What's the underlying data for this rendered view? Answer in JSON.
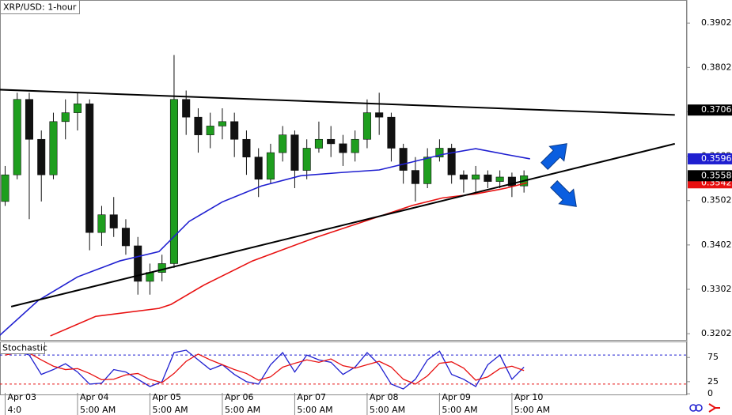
{
  "chart_data": [
    {
      "type": "candlestick",
      "title": "XRP/USD: 1-hour",
      "x": [
        0,
        4,
        8,
        12,
        16,
        20,
        24,
        28,
        32,
        36,
        40,
        44,
        48,
        52,
        56,
        60,
        64,
        68,
        72,
        76,
        80,
        84,
        88,
        92,
        96,
        100,
        104,
        108,
        112,
        116,
        120,
        124,
        128,
        132,
        136,
        140,
        144,
        148,
        152,
        156,
        160,
        164,
        168,
        172
      ],
      "open": [
        0.35,
        0.356,
        0.373,
        0.364,
        0.356,
        0.368,
        0.37,
        0.372,
        0.343,
        0.347,
        0.344,
        0.34,
        0.332,
        0.334,
        0.336,
        0.373,
        0.369,
        0.365,
        0.367,
        0.368,
        0.364,
        0.36,
        0.355,
        0.361,
        0.365,
        0.357,
        0.362,
        0.364,
        0.363,
        0.361,
        0.364,
        0.37,
        0.369,
        0.362,
        0.357,
        0.354,
        0.36,
        0.362,
        0.356,
        0.355,
        0.356,
        0.3545,
        0.3555,
        0.3535
      ],
      "high": [
        0.358,
        0.3745,
        0.3745,
        0.366,
        0.37,
        0.373,
        0.3745,
        0.373,
        0.349,
        0.351,
        0.346,
        0.342,
        0.336,
        0.338,
        0.383,
        0.375,
        0.371,
        0.37,
        0.371,
        0.37,
        0.366,
        0.362,
        0.363,
        0.367,
        0.366,
        0.364,
        0.368,
        0.367,
        0.365,
        0.366,
        0.373,
        0.3745,
        0.37,
        0.363,
        0.36,
        0.362,
        0.364,
        0.363,
        0.357,
        0.358,
        0.357,
        0.357,
        0.3565,
        0.357
      ],
      "low": [
        0.349,
        0.355,
        0.346,
        0.35,
        0.355,
        0.364,
        0.366,
        0.339,
        0.34,
        0.342,
        0.338,
        0.329,
        0.329,
        0.332,
        0.335,
        0.365,
        0.361,
        0.362,
        0.364,
        0.36,
        0.356,
        0.351,
        0.354,
        0.359,
        0.353,
        0.355,
        0.361,
        0.36,
        0.358,
        0.359,
        0.362,
        0.365,
        0.359,
        0.354,
        0.35,
        0.353,
        0.359,
        0.354,
        0.352,
        0.352,
        0.353,
        0.353,
        0.351,
        0.352
      ],
      "close": [
        0.356,
        0.373,
        0.364,
        0.356,
        0.368,
        0.37,
        0.372,
        0.343,
        0.347,
        0.344,
        0.34,
        0.332,
        0.334,
        0.336,
        0.373,
        0.369,
        0.365,
        0.367,
        0.368,
        0.364,
        0.36,
        0.355,
        0.361,
        0.365,
        0.357,
        0.362,
        0.364,
        0.363,
        0.361,
        0.364,
        0.37,
        0.369,
        0.362,
        0.357,
        0.354,
        0.36,
        0.362,
        0.356,
        0.355,
        0.356,
        0.3545,
        0.3555,
        0.3535,
        0.3558
      ],
      "up_color": "#1e9e1e",
      "down_color": "#111111",
      "lines": [
        {
          "color": "#1f1fd0",
          "x": [
            -2,
            11,
            24,
            38,
            51,
            61,
            72,
            85,
            98,
            111,
            124,
            135,
            145,
            156,
            166,
            174
          ],
          "values": [
            0.3197,
            0.3277,
            0.333,
            0.3366,
            0.3387,
            0.3455,
            0.3499,
            0.3535,
            0.3558,
            0.3565,
            0.3571,
            0.3589,
            0.3606,
            0.3619,
            0.3606,
            0.3596
          ]
        },
        {
          "color": "#e81010",
          "x": [
            15,
            30,
            51,
            55,
            66,
            82,
            103,
            119,
            135,
            145,
            156,
            166,
            173
          ],
          "values": [
            0.3197,
            0.3241,
            0.3259,
            0.3268,
            0.3312,
            0.3366,
            0.3419,
            0.3455,
            0.3491,
            0.3508,
            0.3517,
            0.353,
            0.3542
          ]
        }
      ],
      "trendlines": [
        {
          "color": "#000000",
          "x": [
            -2,
            222
          ],
          "values": [
            0.3752,
            0.3695
          ]
        },
        {
          "color": "#000000",
          "x": [
            2,
            222
          ],
          "values": [
            0.3263,
            0.363
          ]
        }
      ],
      "price_labels": [
        {
          "value": 0.3706,
          "color": "#000000"
        },
        {
          "value": 0.3596,
          "color": "#1f1fd0"
        },
        {
          "value": 0.3542,
          "color": "#e81010"
        },
        {
          "value": 0.3558,
          "color": "#000000"
        }
      ],
      "xlim": [
        -1.7,
        226
      ],
      "ylim": [
        0.3188,
        0.3954
      ],
      "yticks": [
        0.3202,
        0.3302,
        0.3402,
        0.3502,
        0.3602,
        0.3702,
        0.3802,
        0.3902
      ],
      "xticks": [
        {
          "value": 0,
          "label": "Apr 03",
          "time": "4:0"
        },
        {
          "value": 24,
          "label": "Apr 04",
          "time": "5:00 AM"
        },
        {
          "value": 48,
          "label": "Apr 05",
          "time": "5:00 AM"
        },
        {
          "value": 72,
          "label": "Apr 06",
          "time": "5:00 AM"
        },
        {
          "value": 96,
          "label": "Apr 07",
          "time": "5:00 AM"
        },
        {
          "value": 120,
          "label": "Apr 08",
          "time": "5:00 AM"
        },
        {
          "value": 144,
          "label": "Apr 09",
          "time": "5:00 AM"
        },
        {
          "value": 168,
          "label": "Apr 10",
          "time": "5:00 AM"
        }
      ]
    },
    {
      "type": "line",
      "title": "Stochastic",
      "series": [
        {
          "color": "#1f1fd0",
          "values": [
            85,
            88,
            80,
            40,
            50,
            62,
            45,
            20,
            22,
            50,
            45,
            30,
            15,
            25,
            85,
            90,
            70,
            50,
            60,
            40,
            25,
            20,
            60,
            85,
            45,
            80,
            70,
            65,
            40,
            55,
            85,
            60,
            20,
            10,
            30,
            70,
            88,
            40,
            30,
            15,
            60,
            80,
            30,
            55
          ]
        },
        {
          "color": "#e81010",
          "values": [
            80,
            85,
            84,
            70,
            57,
            50,
            52,
            42,
            29,
            30,
            39,
            42,
            30,
            23,
            42,
            67,
            82,
            70,
            60,
            50,
            42,
            28,
            35,
            55,
            63,
            70,
            65,
            72,
            58,
            53,
            60,
            67,
            55,
            30,
            20,
            37,
            63,
            66,
            53,
            28,
            35,
            52,
            57,
            48
          ]
        }
      ],
      "levels": [
        {
          "value": 80,
          "color": "#1f1fd0"
        },
        {
          "value": 20,
          "color": "#e81010"
        }
      ],
      "ylim": [
        -3,
        108
      ],
      "yticks": [
        0,
        25,
        75
      ]
    }
  ]
}
